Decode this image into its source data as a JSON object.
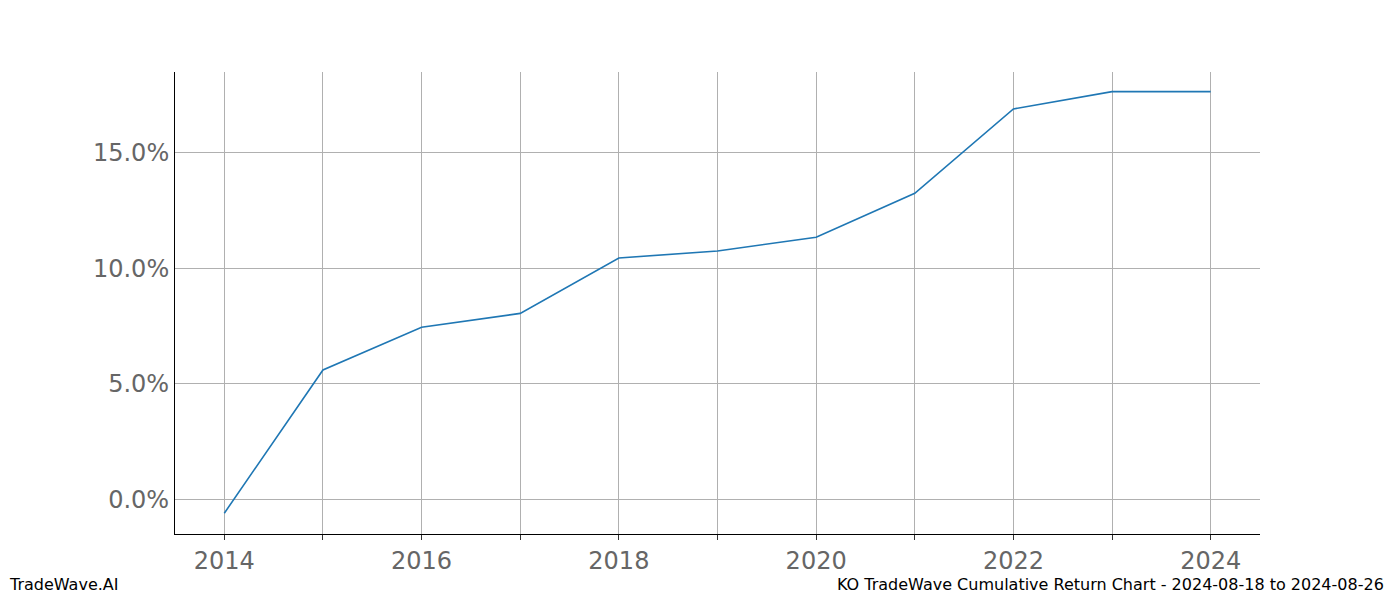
{
  "chart_data": {
    "type": "line",
    "x": [
      2014,
      2015,
      2016,
      2017,
      2018,
      2019,
      2020,
      2021,
      2022,
      2023,
      2024
    ],
    "values": [
      -0.6,
      5.6,
      7.45,
      8.05,
      10.45,
      10.75,
      11.35,
      13.25,
      16.9,
      17.65,
      17.65
    ],
    "color": "#1f77b4",
    "xlim": [
      2013.5,
      2024.5
    ],
    "xticks": [
      2014,
      2016,
      2018,
      2020,
      2022,
      2024
    ],
    "ylim": [
      -1.5,
      18.5
    ],
    "yticks": [
      {
        "value": 0,
        "label": "0.0%"
      },
      {
        "value": 5,
        "label": "5.0%"
      },
      {
        "value": 10,
        "label": "10.0%"
      },
      {
        "value": 15,
        "label": "15.0%"
      }
    ],
    "grid": true,
    "footer_left": "TradeWave.AI",
    "footer_right": "KO TradeWave Cumulative Return Chart - 2024-08-18 to 2024-08-26"
  }
}
